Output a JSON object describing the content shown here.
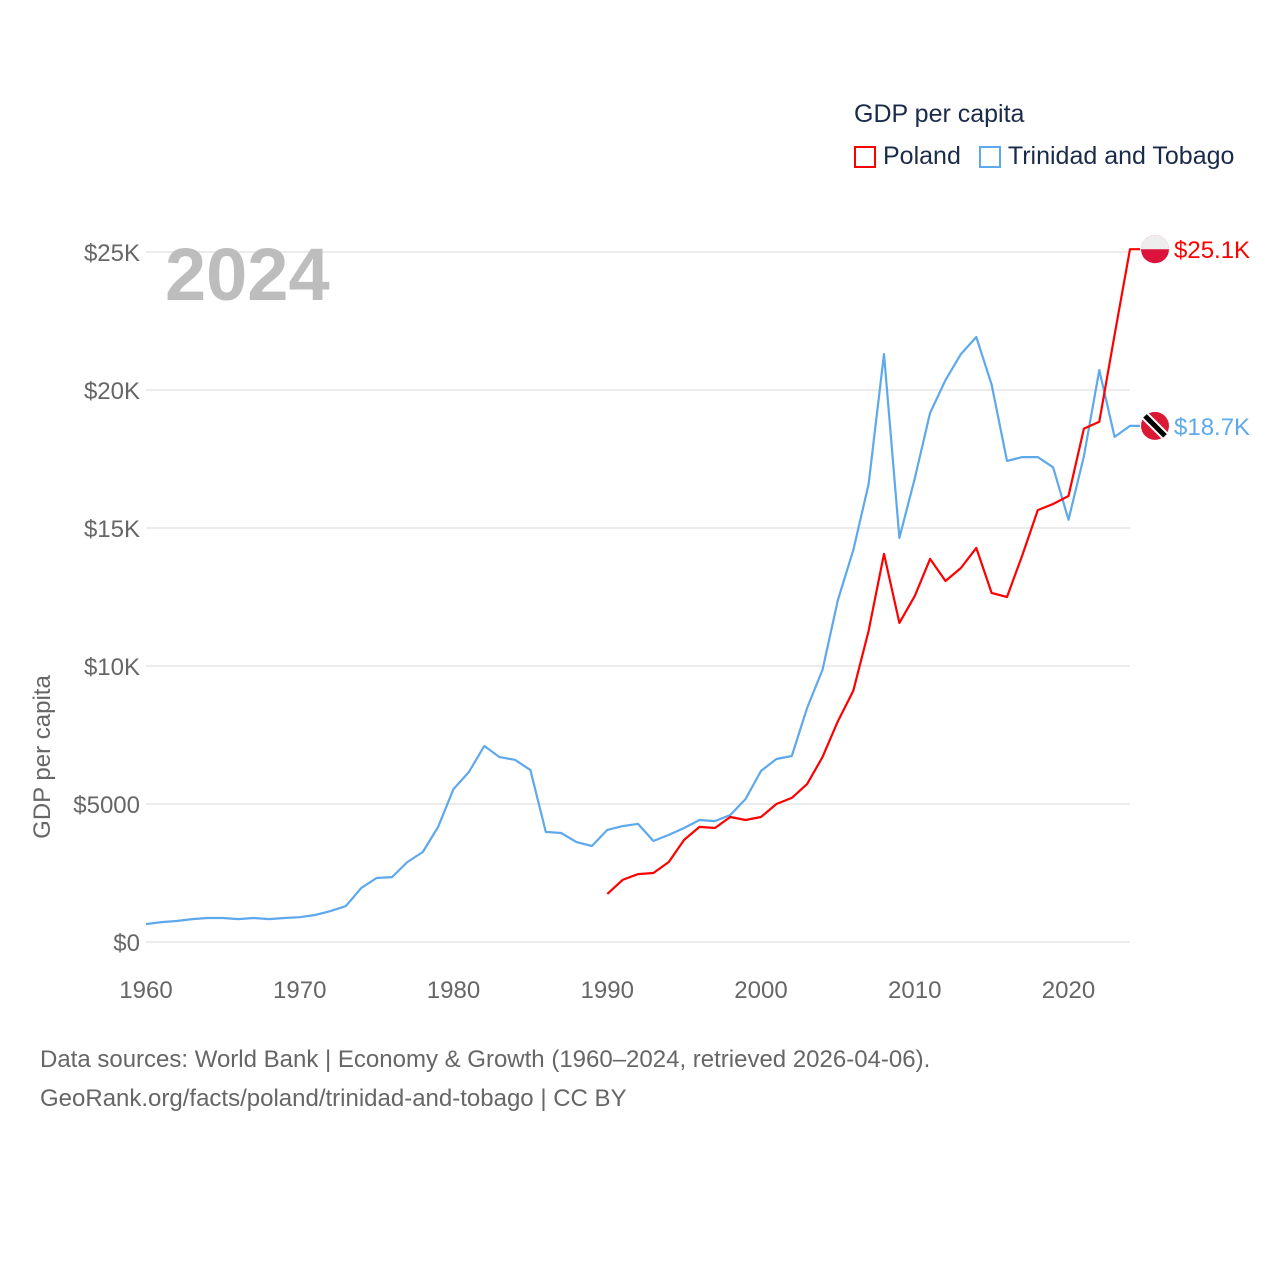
{
  "chart_data": {
    "type": "line",
    "title": "GDP per capita",
    "ylabel": "GDP per capita",
    "xlabel": "",
    "year_label": "2024",
    "xlim": [
      1960,
      2024
    ],
    "ylim": [
      0,
      25000
    ],
    "x_ticks": [
      "1960",
      "1970",
      "1980",
      "1990",
      "2000",
      "2010",
      "2020"
    ],
    "y_ticks": [
      {
        "v": 0,
        "label": "$0"
      },
      {
        "v": 5000,
        "label": "$5000"
      },
      {
        "v": 10000,
        "label": "$10K"
      },
      {
        "v": 15000,
        "label": "$15K"
      },
      {
        "v": 20000,
        "label": "$20K"
      },
      {
        "v": 25000,
        "label": "$25K"
      }
    ],
    "grid": true,
    "legend_placement": "top-right",
    "series": [
      {
        "name": "Poland",
        "color": "#ff0000",
        "end_label": "$25.1K",
        "start_year": 1990,
        "values": [
          1740,
          2250,
          2460,
          2500,
          2900,
          3700,
          4170,
          4130,
          4530,
          4420,
          4530,
          5000,
          5220,
          5720,
          6700,
          8000,
          9100,
          11270,
          14060,
          11560,
          12540,
          13880,
          13080,
          13550,
          14280,
          12650,
          12500,
          14020,
          15650,
          15870,
          16160,
          18600,
          18850,
          22000,
          25100
        ]
      },
      {
        "name": "Trinidad and Tobago",
        "color": "#5ea8ec",
        "end_label": "$18.7K",
        "start_year": 1960,
        "values": [
          650,
          720,
          760,
          830,
          870,
          870,
          830,
          870,
          830,
          870,
          900,
          980,
          1120,
          1300,
          1960,
          2320,
          2350,
          2900,
          3260,
          4170,
          5540,
          6160,
          7100,
          6700,
          6600,
          6230,
          3990,
          3950,
          3620,
          3480,
          4060,
          4200,
          4280,
          3660,
          3880,
          4130,
          4420,
          4380,
          4600,
          5180,
          6200,
          6630,
          6740,
          8480,
          9860,
          12390,
          14200,
          16590,
          21300,
          14640,
          16800,
          19170,
          20360,
          21300,
          21920,
          20200,
          17430,
          17570,
          17570,
          17200,
          15300,
          17600,
          20720,
          18300,
          18700
        ]
      }
    ]
  },
  "footer": {
    "line1": "Data sources: World Bank | Economy & Growth (1960–2024, retrieved 2026-04-06).",
    "line2": "GeoRank.org/facts/poland/trinidad-and-tobago | CC BY"
  }
}
